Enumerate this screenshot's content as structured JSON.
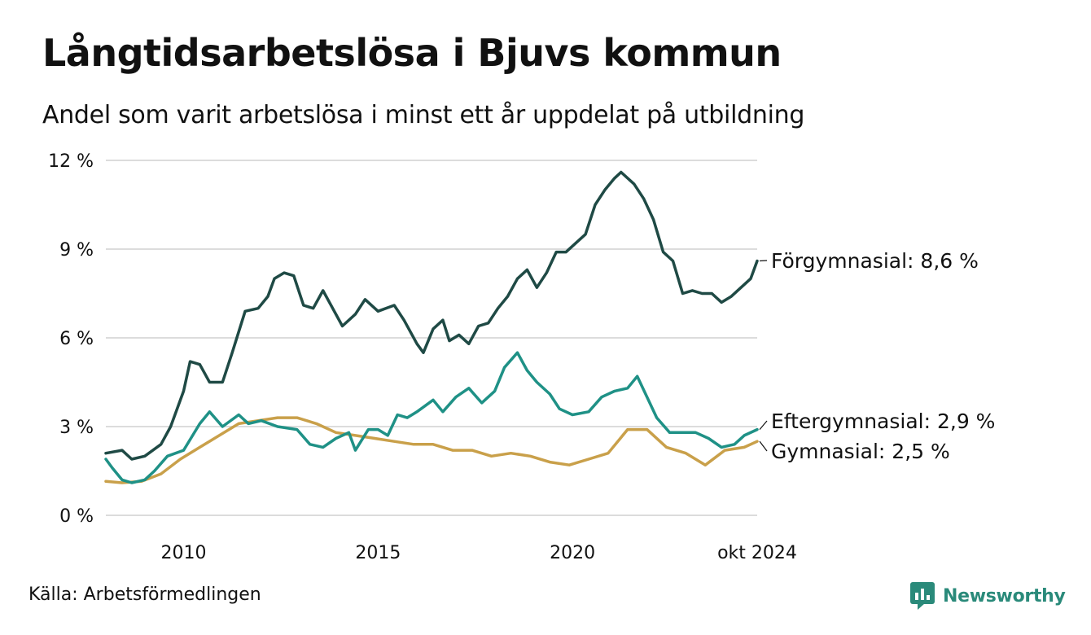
{
  "title": "Långtidsarbetslösa i Bjuvs kommun",
  "subtitle": "Andel som varit arbetslösa i minst ett år uppdelat på utbildning",
  "source": "Källa: Arbetsförmedlingen",
  "brand": {
    "name": "Newsworthy",
    "icon": "bar-chart-speech-bubble-icon",
    "color": "#2a8a7a"
  },
  "chart_data": {
    "type": "line",
    "x_start": "2008-01",
    "x_end": "2024-10",
    "ylim": [
      0,
      12
    ],
    "y_ticks": [
      {
        "value": 0,
        "label": "0 %"
      },
      {
        "value": 3,
        "label": "3 %"
      },
      {
        "value": 6,
        "label": "6 %"
      },
      {
        "value": 9,
        "label": "9 %"
      },
      {
        "value": 12,
        "label": "12 %"
      }
    ],
    "x_ticks": [
      {
        "value": "2010",
        "label": "2010"
      },
      {
        "value": "2015",
        "label": "2015"
      },
      {
        "value": "2020",
        "label": "2020"
      },
      {
        "value": "2024-10",
        "label": "okt 2024"
      }
    ],
    "grid": true,
    "series": [
      {
        "name": "Förgymnasial",
        "end_label": "Förgymnasial: 8,6 %",
        "color": "#1f4a45",
        "points": [
          [
            "2008-01",
            2.1
          ],
          [
            "2008-06",
            2.2
          ],
          [
            "2008-09",
            1.9
          ],
          [
            "2009-01",
            2.0
          ],
          [
            "2009-06",
            2.4
          ],
          [
            "2009-09",
            3.0
          ],
          [
            "2010-01",
            4.2
          ],
          [
            "2010-03",
            5.2
          ],
          [
            "2010-06",
            5.1
          ],
          [
            "2010-09",
            4.5
          ],
          [
            "2011-01",
            4.5
          ],
          [
            "2011-04",
            5.5
          ],
          [
            "2011-08",
            6.9
          ],
          [
            "2011-12",
            7.0
          ],
          [
            "2012-03",
            7.4
          ],
          [
            "2012-05",
            8.0
          ],
          [
            "2012-08",
            8.2
          ],
          [
            "2012-11",
            8.1
          ],
          [
            "2013-02",
            7.1
          ],
          [
            "2013-05",
            7.0
          ],
          [
            "2013-08",
            7.6
          ],
          [
            "2013-11",
            7.0
          ],
          [
            "2014-02",
            6.4
          ],
          [
            "2014-06",
            6.8
          ],
          [
            "2014-09",
            7.3
          ],
          [
            "2015-01",
            6.9
          ],
          [
            "2015-06",
            7.1
          ],
          [
            "2015-09",
            6.6
          ],
          [
            "2016-01",
            5.8
          ],
          [
            "2016-03",
            5.5
          ],
          [
            "2016-06",
            6.3
          ],
          [
            "2016-09",
            6.6
          ],
          [
            "2016-11",
            5.9
          ],
          [
            "2017-02",
            6.1
          ],
          [
            "2017-05",
            5.8
          ],
          [
            "2017-08",
            6.4
          ],
          [
            "2017-11",
            6.5
          ],
          [
            "2018-02",
            7.0
          ],
          [
            "2018-05",
            7.4
          ],
          [
            "2018-08",
            8.0
          ],
          [
            "2018-11",
            8.3
          ],
          [
            "2019-02",
            7.7
          ],
          [
            "2019-05",
            8.2
          ],
          [
            "2019-08",
            8.9
          ],
          [
            "2019-11",
            8.9
          ],
          [
            "2020-02",
            9.2
          ],
          [
            "2020-05",
            9.5
          ],
          [
            "2020-08",
            10.5
          ],
          [
            "2020-11",
            11.0
          ],
          [
            "2021-02",
            11.4
          ],
          [
            "2021-04",
            11.6
          ],
          [
            "2021-08",
            11.2
          ],
          [
            "2021-11",
            10.7
          ],
          [
            "2022-02",
            10.0
          ],
          [
            "2022-05",
            8.9
          ],
          [
            "2022-08",
            8.6
          ],
          [
            "2022-11",
            7.5
          ],
          [
            "2023-02",
            7.6
          ],
          [
            "2023-05",
            7.5
          ],
          [
            "2023-08",
            7.5
          ],
          [
            "2023-11",
            7.2
          ],
          [
            "2024-02",
            7.4
          ],
          [
            "2024-05",
            7.7
          ],
          [
            "2024-08",
            8.0
          ],
          [
            "2024-10",
            8.6
          ]
        ]
      },
      {
        "name": "Eftergymnasial",
        "end_label": "Eftergymnasial: 2,9 %",
        "color": "#1f9186",
        "points": [
          [
            "2008-01",
            1.9
          ],
          [
            "2008-03",
            1.6
          ],
          [
            "2008-06",
            1.2
          ],
          [
            "2008-09",
            1.1
          ],
          [
            "2009-01",
            1.2
          ],
          [
            "2009-04",
            1.5
          ],
          [
            "2009-08",
            2.0
          ],
          [
            "2010-01",
            2.2
          ],
          [
            "2010-06",
            3.1
          ],
          [
            "2010-09",
            3.5
          ],
          [
            "2011-01",
            3.0
          ],
          [
            "2011-06",
            3.4
          ],
          [
            "2011-09",
            3.1
          ],
          [
            "2012-01",
            3.2
          ],
          [
            "2012-06",
            3.0
          ],
          [
            "2012-12",
            2.9
          ],
          [
            "2013-04",
            2.4
          ],
          [
            "2013-08",
            2.3
          ],
          [
            "2013-12",
            2.6
          ],
          [
            "2014-04",
            2.8
          ],
          [
            "2014-06",
            2.2
          ],
          [
            "2014-10",
            2.9
          ],
          [
            "2015-01",
            2.9
          ],
          [
            "2015-04",
            2.7
          ],
          [
            "2015-07",
            3.4
          ],
          [
            "2015-10",
            3.3
          ],
          [
            "2016-01",
            3.5
          ],
          [
            "2016-06",
            3.9
          ],
          [
            "2016-09",
            3.5
          ],
          [
            "2017-01",
            4.0
          ],
          [
            "2017-05",
            4.3
          ],
          [
            "2017-09",
            3.8
          ],
          [
            "2018-01",
            4.2
          ],
          [
            "2018-04",
            5.0
          ],
          [
            "2018-08",
            5.5
          ],
          [
            "2018-11",
            4.9
          ],
          [
            "2019-02",
            4.5
          ],
          [
            "2019-06",
            4.1
          ],
          [
            "2019-09",
            3.6
          ],
          [
            "2020-01",
            3.4
          ],
          [
            "2020-06",
            3.5
          ],
          [
            "2020-10",
            4.0
          ],
          [
            "2021-02",
            4.2
          ],
          [
            "2021-06",
            4.3
          ],
          [
            "2021-09",
            4.7
          ],
          [
            "2021-12",
            4.0
          ],
          [
            "2022-03",
            3.3
          ],
          [
            "2022-07",
            2.8
          ],
          [
            "2022-11",
            2.8
          ],
          [
            "2023-03",
            2.8
          ],
          [
            "2023-07",
            2.6
          ],
          [
            "2023-11",
            2.3
          ],
          [
            "2024-03",
            2.4
          ],
          [
            "2024-06",
            2.7
          ],
          [
            "2024-10",
            2.9
          ]
        ]
      },
      {
        "name": "Gymnasial",
        "end_label": "Gymnasial: 2,5 %",
        "color": "#c9a04a",
        "points": [
          [
            "2008-01",
            1.15
          ],
          [
            "2008-06",
            1.1
          ],
          [
            "2008-12",
            1.15
          ],
          [
            "2009-06",
            1.4
          ],
          [
            "2009-12",
            1.9
          ],
          [
            "2010-06",
            2.3
          ],
          [
            "2010-12",
            2.7
          ],
          [
            "2011-06",
            3.1
          ],
          [
            "2011-12",
            3.2
          ],
          [
            "2012-06",
            3.3
          ],
          [
            "2012-12",
            3.3
          ],
          [
            "2013-06",
            3.1
          ],
          [
            "2013-12",
            2.8
          ],
          [
            "2014-06",
            2.7
          ],
          [
            "2014-12",
            2.6
          ],
          [
            "2015-06",
            2.5
          ],
          [
            "2015-12",
            2.4
          ],
          [
            "2016-06",
            2.4
          ],
          [
            "2016-12",
            2.2
          ],
          [
            "2017-06",
            2.2
          ],
          [
            "2017-12",
            2.0
          ],
          [
            "2018-06",
            2.1
          ],
          [
            "2018-12",
            2.0
          ],
          [
            "2019-06",
            1.8
          ],
          [
            "2019-12",
            1.7
          ],
          [
            "2020-06",
            1.9
          ],
          [
            "2020-12",
            2.1
          ],
          [
            "2021-06",
            2.9
          ],
          [
            "2021-12",
            2.9
          ],
          [
            "2022-06",
            2.3
          ],
          [
            "2022-12",
            2.1
          ],
          [
            "2023-06",
            1.7
          ],
          [
            "2023-12",
            2.2
          ],
          [
            "2024-06",
            2.3
          ],
          [
            "2024-10",
            2.5
          ]
        ]
      }
    ]
  }
}
